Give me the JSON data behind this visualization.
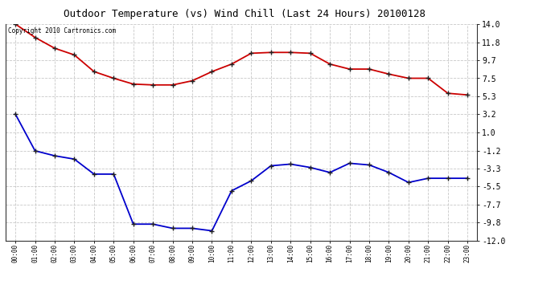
{
  "title": "Outdoor Temperature (vs) Wind Chill (Last 24 Hours) 20100128",
  "copyright_text": "Copyright 2010 Cartronics.com",
  "hours": [
    0,
    1,
    2,
    3,
    4,
    5,
    6,
    7,
    8,
    9,
    10,
    11,
    12,
    13,
    14,
    15,
    16,
    17,
    18,
    19,
    20,
    21,
    22,
    23
  ],
  "hour_labels": [
    "00:00",
    "01:00",
    "02:00",
    "03:00",
    "04:00",
    "05:00",
    "06:00",
    "07:00",
    "08:00",
    "09:00",
    "10:00",
    "11:00",
    "12:00",
    "13:00",
    "14:00",
    "15:00",
    "16:00",
    "17:00",
    "18:00",
    "19:00",
    "20:00",
    "21:00",
    "22:00",
    "23:00"
  ],
  "temp_red": [
    14.0,
    12.4,
    11.1,
    10.3,
    8.3,
    7.5,
    6.8,
    6.7,
    6.7,
    7.2,
    8.3,
    9.2,
    10.5,
    10.6,
    10.6,
    10.5,
    9.2,
    8.6,
    8.6,
    8.0,
    7.5,
    7.5,
    5.7,
    5.5
  ],
  "wind_chill_blue": [
    3.2,
    -1.2,
    -1.8,
    -2.2,
    -4.0,
    -4.0,
    -10.0,
    -10.0,
    -10.5,
    -10.5,
    -10.8,
    -6.0,
    -4.8,
    -3.0,
    -2.8,
    -3.2,
    -3.8,
    -2.7,
    -2.9,
    -3.8,
    -5.0,
    -4.5,
    -4.5,
    -4.5
  ],
  "ylim": [
    -12.0,
    14.0
  ],
  "yticks": [
    14.0,
    11.8,
    9.7,
    7.5,
    5.3,
    3.2,
    1.0,
    -1.2,
    -3.3,
    -5.5,
    -7.7,
    -9.8,
    -12.0
  ],
  "line_color_red": "#cc0000",
  "line_color_blue": "#0000cc",
  "bg_color": "#ffffff",
  "grid_color": "#c8c8c8"
}
